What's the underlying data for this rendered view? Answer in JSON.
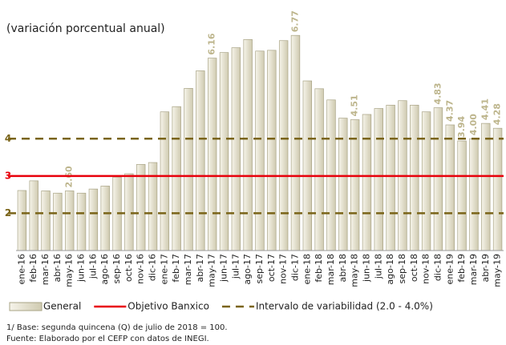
{
  "chart_data": {
    "type": "bar",
    "subtitle": "(variación porcentual anual)",
    "categories": [
      "ene-16",
      "feb-16",
      "mar-16",
      "abr-16",
      "may-16",
      "jun-16",
      "jul-16",
      "ago-16",
      "sep-16",
      "oct-16",
      "nov-16",
      "dic-16",
      "ene-17",
      "feb-17",
      "mar-17",
      "abr-17",
      "may-17",
      "jun-17",
      "jul-17",
      "ago-17",
      "sep-17",
      "oct-17",
      "nov-17",
      "dic-17",
      "ene-18",
      "feb-18",
      "mar-18",
      "abr-18",
      "may-18",
      "jun-18",
      "jul-18",
      "ago-18",
      "sep-18",
      "oct-18",
      "nov-18",
      "dic-18",
      "ene-19",
      "feb-19",
      "mar-19",
      "abr-19",
      "may-19"
    ],
    "series": [
      {
        "name": "General",
        "color": "#e6e2cc",
        "values": [
          2.61,
          2.87,
          2.6,
          2.54,
          2.6,
          2.54,
          2.65,
          2.73,
          2.97,
          3.06,
          3.31,
          3.36,
          4.72,
          4.86,
          5.35,
          5.82,
          6.16,
          6.31,
          6.44,
          6.66,
          6.35,
          6.37,
          6.63,
          6.77,
          5.55,
          5.34,
          5.04,
          4.55,
          4.51,
          4.65,
          4.81,
          4.9,
          5.02,
          4.9,
          4.72,
          4.83,
          4.37,
          3.94,
          4.0,
          4.41,
          4.28
        ],
        "value_labels": [
          null,
          null,
          null,
          null,
          "2.60",
          null,
          null,
          null,
          null,
          null,
          null,
          null,
          null,
          null,
          null,
          null,
          "6.16",
          null,
          null,
          null,
          null,
          null,
          null,
          "6.77",
          null,
          null,
          null,
          null,
          "4.51",
          null,
          null,
          null,
          null,
          null,
          null,
          "4.83",
          "4.37",
          "3.94",
          "4.00",
          "4.41",
          "4.28"
        ]
      }
    ],
    "reference_lines": [
      {
        "name": "Objetivo Banxico",
        "values": [
          3
        ],
        "color": "#e8000b",
        "style": "solid"
      },
      {
        "name": "Intervalo de variabilidad (2.0 - 4.0%)",
        "values": [
          2,
          4
        ],
        "color": "#7a6418",
        "style": "dashed"
      }
    ],
    "ylim": [
      1,
      7
    ],
    "yticks": [
      2,
      3,
      4
    ],
    "grid": false,
    "notes": [
      "1/ Base: segunda quincena (Q) de julio de 2018 = 100.",
      "Fuente: Elaborado por el CEFP con datos de INEGI."
    ]
  }
}
